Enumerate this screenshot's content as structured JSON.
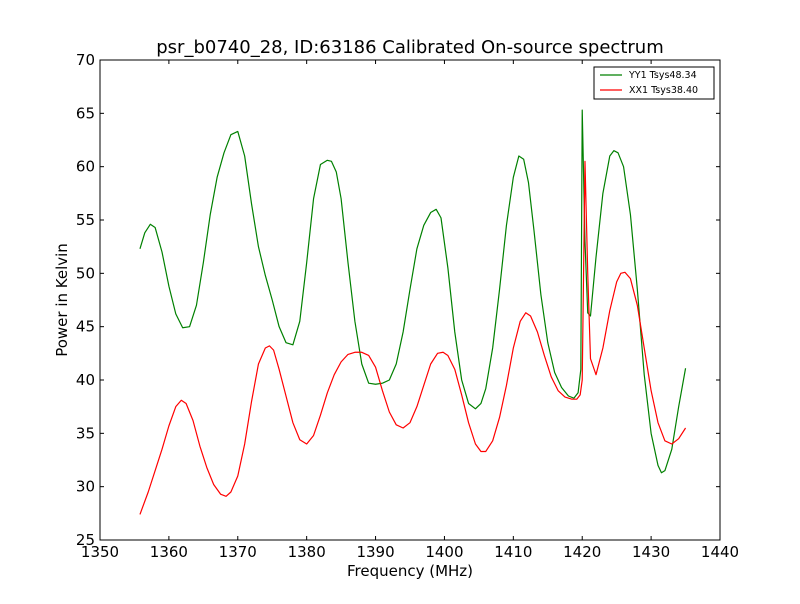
{
  "chart_data": {
    "type": "line",
    "title": "psr_b0740_28, ID:63186 Calibrated On-source spectrum",
    "xlabel": "Frequency (MHz)",
    "ylabel": "Power in Kelvin",
    "xlim": [
      1350,
      1440
    ],
    "ylim": [
      25,
      70
    ],
    "x_ticks": [
      1350,
      1360,
      1370,
      1380,
      1390,
      1400,
      1410,
      1420,
      1430,
      1440
    ],
    "y_ticks": [
      25,
      30,
      35,
      40,
      45,
      50,
      55,
      60,
      65,
      70
    ],
    "grid": false,
    "legend_position": "top-right",
    "series": [
      {
        "name": "YY1 Tsys48.34",
        "color": "#008000",
        "x": [
          1355.8,
          1356.5,
          1357.3,
          1358.0,
          1359.0,
          1360.0,
          1361.0,
          1362.0,
          1363.0,
          1364.0,
          1365.0,
          1366.0,
          1367.0,
          1368.0,
          1369.0,
          1370.0,
          1371.0,
          1372.0,
          1373.0,
          1374.0,
          1375.0,
          1376.0,
          1377.0,
          1378.0,
          1379.0,
          1380.0,
          1381.0,
          1382.0,
          1383.0,
          1383.6,
          1384.3,
          1385.0,
          1386.0,
          1387.0,
          1388.0,
          1389.0,
          1390.0,
          1391.0,
          1392.0,
          1393.0,
          1394.0,
          1395.0,
          1396.0,
          1397.0,
          1398.0,
          1398.8,
          1399.5,
          1400.5,
          1401.5,
          1402.5,
          1403.5,
          1404.5,
          1405.3,
          1406.0,
          1407.0,
          1408.0,
          1409.0,
          1410.0,
          1410.8,
          1411.5,
          1412.2,
          1413.0,
          1414.0,
          1415.0,
          1416.0,
          1417.0,
          1418.0,
          1418.8,
          1419.4,
          1419.8,
          1420.0,
          1420.4,
          1420.8,
          1421.2,
          1422.0,
          1423.0,
          1424.0,
          1424.6,
          1425.2,
          1426.0,
          1427.0,
          1428.0,
          1429.0,
          1430.0,
          1431.0,
          1431.5,
          1432.0,
          1433.0,
          1434.0,
          1435.0
        ],
        "values": [
          52.3,
          53.8,
          54.6,
          54.3,
          52.0,
          48.8,
          46.2,
          44.9,
          45.0,
          47.0,
          51.0,
          55.5,
          59.0,
          61.3,
          63.0,
          63.3,
          61.0,
          56.5,
          52.5,
          49.8,
          47.5,
          45.0,
          43.5,
          43.3,
          45.5,
          51.0,
          57.0,
          60.2,
          60.6,
          60.5,
          59.5,
          57.0,
          51.0,
          45.5,
          41.5,
          39.7,
          39.6,
          39.7,
          40.0,
          41.5,
          44.5,
          48.5,
          52.3,
          54.5,
          55.7,
          56.0,
          55.2,
          50.5,
          44.5,
          40.0,
          37.8,
          37.3,
          37.8,
          39.2,
          43.0,
          48.5,
          54.5,
          59.0,
          61.0,
          60.7,
          58.5,
          54.0,
          48.0,
          43.5,
          40.7,
          39.3,
          38.5,
          38.3,
          38.8,
          41.0,
          65.3,
          53.0,
          46.3,
          46.0,
          51.5,
          57.5,
          61.0,
          61.5,
          61.3,
          60.0,
          55.5,
          48.5,
          40.5,
          35.0,
          32.0,
          31.3,
          31.5,
          33.5,
          37.5,
          41.1
        ]
      },
      {
        "name": "XX1 Tsys38.40",
        "color": "#ff0000",
        "x": [
          1355.8,
          1357.0,
          1358.0,
          1359.0,
          1360.0,
          1361.0,
          1361.8,
          1362.5,
          1363.5,
          1364.5,
          1365.5,
          1366.5,
          1367.5,
          1368.3,
          1369.0,
          1370.0,
          1371.0,
          1372.0,
          1373.0,
          1374.0,
          1374.6,
          1375.2,
          1376.0,
          1377.0,
          1378.0,
          1379.0,
          1380.0,
          1381.0,
          1382.0,
          1383.0,
          1384.0,
          1385.0,
          1386.0,
          1387.0,
          1388.0,
          1389.0,
          1390.0,
          1391.0,
          1392.0,
          1393.0,
          1394.0,
          1395.0,
          1396.0,
          1397.0,
          1398.0,
          1399.0,
          1399.8,
          1400.5,
          1401.5,
          1402.5,
          1403.5,
          1404.5,
          1405.3,
          1406.0,
          1407.0,
          1408.0,
          1409.0,
          1410.0,
          1411.0,
          1411.8,
          1412.5,
          1413.5,
          1414.5,
          1415.5,
          1416.5,
          1417.5,
          1418.5,
          1419.2,
          1419.7,
          1420.0,
          1420.4,
          1420.8,
          1421.2,
          1422.0,
          1423.0,
          1424.0,
          1425.0,
          1425.6,
          1426.2,
          1427.0,
          1428.0,
          1429.0,
          1430.0,
          1431.0,
          1432.0,
          1433.0,
          1434.0,
          1435.0
        ],
        "values": [
          27.4,
          29.5,
          31.5,
          33.5,
          35.7,
          37.5,
          38.1,
          37.8,
          36.2,
          33.8,
          31.8,
          30.2,
          29.3,
          29.1,
          29.5,
          31.0,
          34.0,
          38.0,
          41.5,
          43.0,
          43.2,
          42.8,
          41.0,
          38.5,
          36.0,
          34.4,
          34.0,
          34.8,
          36.7,
          38.8,
          40.5,
          41.7,
          42.4,
          42.6,
          42.6,
          42.3,
          41.2,
          39.0,
          37.0,
          35.8,
          35.5,
          36.0,
          37.5,
          39.5,
          41.5,
          42.5,
          42.6,
          42.3,
          41.0,
          38.6,
          36.0,
          34.0,
          33.3,
          33.3,
          34.3,
          36.5,
          39.5,
          43.0,
          45.5,
          46.3,
          46.0,
          44.5,
          42.3,
          40.3,
          39.0,
          38.4,
          38.2,
          38.2,
          38.6,
          40.0,
          60.5,
          50.0,
          42.0,
          40.5,
          43.0,
          46.5,
          49.2,
          50.0,
          50.1,
          49.5,
          47.0,
          43.0,
          39.0,
          36.0,
          34.3,
          34.0,
          34.5,
          35.5
        ]
      }
    ]
  }
}
